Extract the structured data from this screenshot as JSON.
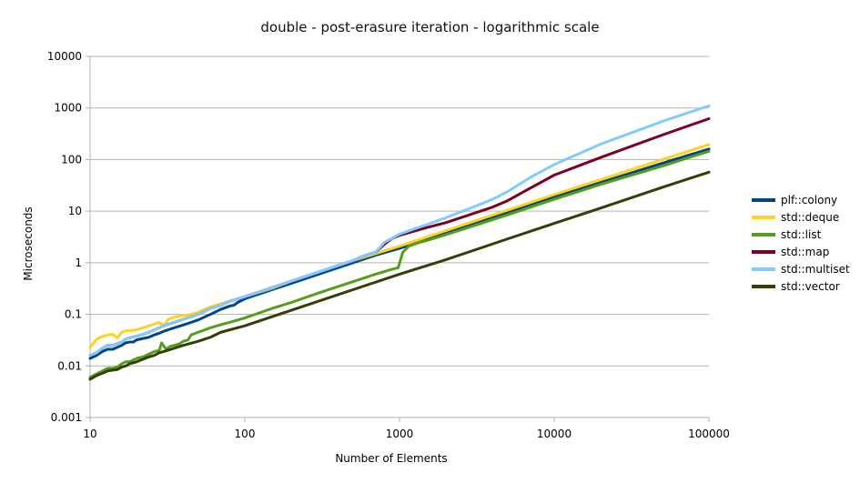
{
  "chart_data": {
    "type": "line",
    "title": "double - post-erasure iteration - logarithmic scale",
    "xlabel": "Number of Elements",
    "ylabel": "Microseconds",
    "x_scale": "log",
    "y_scale": "log",
    "xlim": [
      10,
      100000
    ],
    "ylim": [
      0.001,
      10000
    ],
    "x_ticks": [
      "10",
      "100",
      "1000",
      "10000",
      "100000"
    ],
    "y_ticks": [
      "0.001",
      "0.01",
      "0.1",
      "1",
      "10",
      "100",
      "1000",
      "10000"
    ],
    "grid": "horizontal",
    "legend_position": "right",
    "series": [
      {
        "name": "plf::colony",
        "color": "#004586",
        "points": [
          [
            10,
            0.014
          ],
          [
            11,
            0.016
          ],
          [
            12,
            0.019
          ],
          [
            13,
            0.021
          ],
          [
            14,
            0.021
          ],
          [
            15,
            0.023
          ],
          [
            16,
            0.025
          ],
          [
            17,
            0.028
          ],
          [
            18,
            0.029
          ],
          [
            19,
            0.029
          ],
          [
            20,
            0.032
          ],
          [
            22,
            0.034
          ],
          [
            24,
            0.036
          ],
          [
            26,
            0.04
          ],
          [
            28,
            0.043
          ],
          [
            30,
            0.047
          ],
          [
            35,
            0.055
          ],
          [
            40,
            0.062
          ],
          [
            45,
            0.07
          ],
          [
            50,
            0.078
          ],
          [
            60,
            0.1
          ],
          [
            70,
            0.125
          ],
          [
            80,
            0.145
          ],
          [
            85,
            0.15
          ],
          [
            90,
            0.17
          ],
          [
            100,
            0.2
          ],
          [
            120,
            0.24
          ],
          [
            150,
            0.3
          ],
          [
            200,
            0.4
          ],
          [
            300,
            0.6
          ],
          [
            500,
            1.0
          ],
          [
            700,
            1.4
          ],
          [
            1000,
            1.9
          ],
          [
            2000,
            3.8
          ],
          [
            5000,
            9.5
          ],
          [
            10000,
            19
          ],
          [
            20000,
            36
          ],
          [
            50000,
            85
          ],
          [
            100000,
            160
          ]
        ]
      },
      {
        "name": "std::deque",
        "color": "#ffd320",
        "points": [
          [
            10,
            0.023
          ],
          [
            11,
            0.033
          ],
          [
            12,
            0.037
          ],
          [
            13,
            0.04
          ],
          [
            14,
            0.041
          ],
          [
            15,
            0.035
          ],
          [
            16,
            0.045
          ],
          [
            17,
            0.048
          ],
          [
            18,
            0.048
          ],
          [
            20,
            0.05
          ],
          [
            22,
            0.055
          ],
          [
            24,
            0.06
          ],
          [
            26,
            0.065
          ],
          [
            28,
            0.07
          ],
          [
            30,
            0.06
          ],
          [
            32,
            0.08
          ],
          [
            35,
            0.088
          ],
          [
            40,
            0.095
          ],
          [
            45,
            0.1
          ],
          [
            50,
            0.11
          ],
          [
            60,
            0.14
          ],
          [
            70,
            0.16
          ],
          [
            80,
            0.18
          ],
          [
            90,
            0.2
          ],
          [
            100,
            0.22
          ],
          [
            150,
            0.32
          ],
          [
            200,
            0.44
          ],
          [
            300,
            0.66
          ],
          [
            500,
            1.1
          ],
          [
            700,
            1.5
          ],
          [
            1000,
            2.1
          ],
          [
            2000,
            4.2
          ],
          [
            5000,
            10.5
          ],
          [
            10000,
            21
          ],
          [
            20000,
            41
          ],
          [
            50000,
            100
          ],
          [
            100000,
            195
          ]
        ]
      },
      {
        "name": "std::list",
        "color": "#579d1c",
        "points": [
          [
            10,
            0.006
          ],
          [
            11,
            0.007
          ],
          [
            12,
            0.008
          ],
          [
            13,
            0.009
          ],
          [
            14,
            0.009
          ],
          [
            15,
            0.0095
          ],
          [
            16,
            0.011
          ],
          [
            17,
            0.012
          ],
          [
            18,
            0.012
          ],
          [
            20,
            0.014
          ],
          [
            22,
            0.015
          ],
          [
            24,
            0.017
          ],
          [
            26,
            0.019
          ],
          [
            28,
            0.02
          ],
          [
            29,
            0.028
          ],
          [
            31,
            0.021
          ],
          [
            33,
            0.024
          ],
          [
            35,
            0.025
          ],
          [
            38,
            0.027
          ],
          [
            40,
            0.03
          ],
          [
            43,
            0.032
          ],
          [
            45,
            0.04
          ],
          [
            50,
            0.045
          ],
          [
            60,
            0.055
          ],
          [
            70,
            0.063
          ],
          [
            80,
            0.07
          ],
          [
            100,
            0.085
          ],
          [
            150,
            0.13
          ],
          [
            200,
            0.17
          ],
          [
            300,
            0.26
          ],
          [
            500,
            0.43
          ],
          [
            700,
            0.6
          ],
          [
            900,
            0.75
          ],
          [
            980,
            0.8
          ],
          [
            1050,
            1.6
          ],
          [
            1150,
            2.1
          ],
          [
            1300,
            2.4
          ],
          [
            1500,
            2.7
          ],
          [
            2000,
            3.5
          ],
          [
            5000,
            8.5
          ],
          [
            10000,
            17
          ],
          [
            20000,
            33
          ],
          [
            50000,
            75
          ],
          [
            100000,
            145
          ]
        ]
      },
      {
        "name": "std::map",
        "color": "#7e0021",
        "points": [
          [
            10,
            0.016
          ],
          [
            11,
            0.018
          ],
          [
            12,
            0.022
          ],
          [
            13,
            0.025
          ],
          [
            14,
            0.025
          ],
          [
            15,
            0.027
          ],
          [
            16,
            0.029
          ],
          [
            17,
            0.033
          ],
          [
            18,
            0.035
          ],
          [
            20,
            0.038
          ],
          [
            22,
            0.041
          ],
          [
            24,
            0.045
          ],
          [
            26,
            0.05
          ],
          [
            28,
            0.055
          ],
          [
            30,
            0.06
          ],
          [
            35,
            0.07
          ],
          [
            40,
            0.08
          ],
          [
            45,
            0.09
          ],
          [
            50,
            0.1
          ],
          [
            60,
            0.13
          ],
          [
            70,
            0.15
          ],
          [
            80,
            0.18
          ],
          [
            90,
            0.2
          ],
          [
            100,
            0.22
          ],
          [
            150,
            0.33
          ],
          [
            200,
            0.44
          ],
          [
            300,
            0.66
          ],
          [
            500,
            1.1
          ],
          [
            600,
            1.4
          ],
          [
            700,
            1.6
          ],
          [
            800,
            2.3
          ],
          [
            900,
            3.0
          ],
          [
            1000,
            3.4
          ],
          [
            1500,
            4.8
          ],
          [
            2000,
            6.0
          ],
          [
            3000,
            9.0
          ],
          [
            4000,
            12
          ],
          [
            5000,
            16
          ],
          [
            7000,
            28
          ],
          [
            10000,
            50
          ],
          [
            20000,
            110
          ],
          [
            50000,
            300
          ],
          [
            100000,
            620
          ]
        ]
      },
      {
        "name": "std::multiset",
        "color": "#83caff",
        "points": [
          [
            10,
            0.016
          ],
          [
            11,
            0.018
          ],
          [
            12,
            0.022
          ],
          [
            13,
            0.025
          ],
          [
            14,
            0.025
          ],
          [
            15,
            0.027
          ],
          [
            16,
            0.029
          ],
          [
            17,
            0.033
          ],
          [
            18,
            0.035
          ],
          [
            20,
            0.038
          ],
          [
            22,
            0.041
          ],
          [
            24,
            0.045
          ],
          [
            26,
            0.05
          ],
          [
            28,
            0.055
          ],
          [
            30,
            0.06
          ],
          [
            35,
            0.07
          ],
          [
            40,
            0.08
          ],
          [
            45,
            0.09
          ],
          [
            50,
            0.1
          ],
          [
            60,
            0.13
          ],
          [
            70,
            0.15
          ],
          [
            80,
            0.18
          ],
          [
            90,
            0.2
          ],
          [
            100,
            0.22
          ],
          [
            150,
            0.33
          ],
          [
            200,
            0.44
          ],
          [
            300,
            0.66
          ],
          [
            500,
            1.1
          ],
          [
            600,
            1.4
          ],
          [
            700,
            1.6
          ],
          [
            800,
            2.5
          ],
          [
            1000,
            3.6
          ],
          [
            1500,
            5.5
          ],
          [
            2000,
            7.5
          ],
          [
            3000,
            12
          ],
          [
            4000,
            17
          ],
          [
            5000,
            24
          ],
          [
            7000,
            45
          ],
          [
            10000,
            80
          ],
          [
            20000,
            200
          ],
          [
            50000,
            550
          ],
          [
            100000,
            1100
          ]
        ]
      },
      {
        "name": "std::vector",
        "color": "#314004",
        "points": [
          [
            10,
            0.0055
          ],
          [
            11,
            0.0065
          ],
          [
            12,
            0.0072
          ],
          [
            13,
            0.008
          ],
          [
            14,
            0.0083
          ],
          [
            15,
            0.0085
          ],
          [
            16,
            0.0095
          ],
          [
            17,
            0.01
          ],
          [
            18,
            0.011
          ],
          [
            20,
            0.012
          ],
          [
            22,
            0.0135
          ],
          [
            24,
            0.015
          ],
          [
            26,
            0.016
          ],
          [
            28,
            0.018
          ],
          [
            30,
            0.019
          ],
          [
            35,
            0.022
          ],
          [
            40,
            0.025
          ],
          [
            50,
            0.03
          ],
          [
            60,
            0.036
          ],
          [
            70,
            0.045
          ],
          [
            100,
            0.06
          ],
          [
            200,
            0.12
          ],
          [
            500,
            0.3
          ],
          [
            1000,
            0.6
          ],
          [
            2000,
            1.15
          ],
          [
            5000,
            2.9
          ],
          [
            10000,
            5.8
          ],
          [
            20000,
            11.5
          ],
          [
            50000,
            29
          ],
          [
            100000,
            57
          ]
        ]
      }
    ]
  }
}
